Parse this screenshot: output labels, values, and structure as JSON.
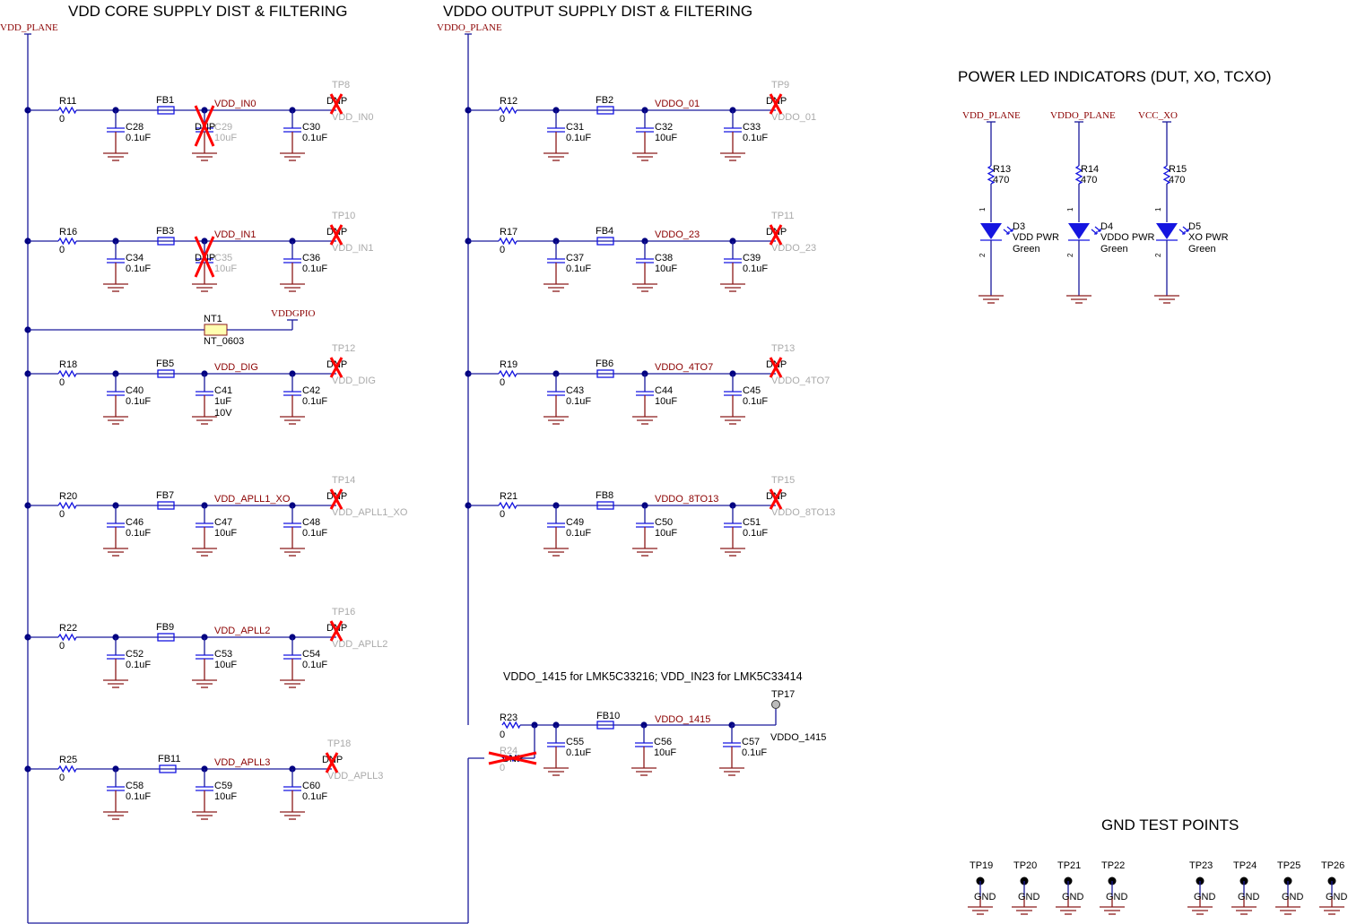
{
  "titles": {
    "vdd_core": "VDD CORE SUPPLY DIST & FILTERING",
    "vddo": "VDDO OUTPUT SUPPLY DIST & FILTERING",
    "led": "POWER LED INDICATORS (DUT, XO, TCXO)",
    "gnd_tp": "GND TEST POINTS",
    "vddo1415_note": "VDDO_1415 for LMK5C33216; VDD_IN23 for LMK5C33414"
  },
  "power_ports": {
    "vdd_plane": "VDD_PLANE",
    "vddo_plane": "VDDO_PLANE",
    "vddgpio": "VDDGPIO"
  },
  "dnp_label": "DNP",
  "nt1": {
    "ref": "NT1",
    "value": "NT_0603"
  },
  "core_rows": [
    {
      "r": {
        "ref": "R11",
        "value": "0"
      },
      "c1": {
        "ref": "C28",
        "value": "0.1uF"
      },
      "fb": "FB1",
      "c2": {
        "ref": "C29",
        "value": "10uF",
        "dnp": true
      },
      "net": "VDD_IN0",
      "c3": {
        "ref": "C30",
        "value": "0.1uF"
      },
      "tp": {
        "ref": "TP8",
        "net": "VDD_IN0",
        "dnp": true
      }
    },
    {
      "r": {
        "ref": "R16",
        "value": "0"
      },
      "c1": {
        "ref": "C34",
        "value": "0.1uF"
      },
      "fb": "FB3",
      "c2": {
        "ref": "C35",
        "value": "10uF",
        "dnp": true
      },
      "net": "VDD_IN1",
      "c3": {
        "ref": "C36",
        "value": "0.1uF"
      },
      "tp": {
        "ref": "TP10",
        "net": "VDD_IN1",
        "dnp": true
      }
    },
    {
      "r": {
        "ref": "R18",
        "value": "0"
      },
      "c1": {
        "ref": "C40",
        "value": "0.1uF"
      },
      "fb": "FB5",
      "c2": {
        "ref": "C41",
        "value": "1uF",
        "value2": "10V"
      },
      "net": "VDD_DIG",
      "c3": {
        "ref": "C42",
        "value": "0.1uF"
      },
      "tp": {
        "ref": "TP12",
        "net": "VDD_DIG",
        "dnp": true
      }
    },
    {
      "r": {
        "ref": "R20",
        "value": "0"
      },
      "c1": {
        "ref": "C46",
        "value": "0.1uF"
      },
      "fb": "FB7",
      "c2": {
        "ref": "C47",
        "value": "10uF"
      },
      "net": "VDD_APLL1_XO",
      "c3": {
        "ref": "C48",
        "value": "0.1uF"
      },
      "tp": {
        "ref": "TP14",
        "net": "VDD_APLL1_XO",
        "dnp": true
      }
    },
    {
      "r": {
        "ref": "R22",
        "value": "0"
      },
      "c1": {
        "ref": "C52",
        "value": "0.1uF"
      },
      "fb": "FB9",
      "c2": {
        "ref": "C53",
        "value": "10uF"
      },
      "net": "VDD_APLL2",
      "c3": {
        "ref": "C54",
        "value": "0.1uF"
      },
      "tp": {
        "ref": "TP16",
        "net": "VDD_APLL2",
        "dnp": true
      }
    },
    {
      "r": {
        "ref": "R25",
        "value": "0"
      },
      "c1": {
        "ref": "C58",
        "value": "0.1uF"
      },
      "fb": "FB11",
      "c2": {
        "ref": "C59",
        "value": "10uF"
      },
      "net": "VDD_APLL3",
      "c3": {
        "ref": "C60",
        "value": "0.1uF"
      },
      "tp": {
        "ref": "TP18",
        "net": "VDD_APLL3",
        "dnp": true
      }
    }
  ],
  "vddo_rows": [
    {
      "r": {
        "ref": "R12",
        "value": "0"
      },
      "c1": {
        "ref": "C31",
        "value": "0.1uF"
      },
      "fb": "FB2",
      "c2": {
        "ref": "C32",
        "value": "10uF"
      },
      "net": "VDDO_01",
      "c3": {
        "ref": "C33",
        "value": "0.1uF"
      },
      "tp": {
        "ref": "TP9",
        "net": "VDDO_01",
        "dnp": true
      }
    },
    {
      "r": {
        "ref": "R17",
        "value": "0"
      },
      "c1": {
        "ref": "C37",
        "value": "0.1uF"
      },
      "fb": "FB4",
      "c2": {
        "ref": "C38",
        "value": "10uF"
      },
      "net": "VDDO_23",
      "c3": {
        "ref": "C39",
        "value": "0.1uF"
      },
      "tp": {
        "ref": "TP11",
        "net": "VDDO_23",
        "dnp": true
      }
    },
    {
      "r": {
        "ref": "R19",
        "value": "0"
      },
      "c1": {
        "ref": "C43",
        "value": "0.1uF"
      },
      "fb": "FB6",
      "c2": {
        "ref": "C44",
        "value": "10uF"
      },
      "net": "VDDO_4TO7",
      "c3": {
        "ref": "C45",
        "value": "0.1uF"
      },
      "tp": {
        "ref": "TP13",
        "net": "VDDO_4TO7",
        "dnp": true
      }
    },
    {
      "r": {
        "ref": "R21",
        "value": "0"
      },
      "c1": {
        "ref": "C49",
        "value": "0.1uF"
      },
      "fb": "FB8",
      "c2": {
        "ref": "C50",
        "value": "10uF"
      },
      "net": "VDDO_8TO13",
      "c3": {
        "ref": "C51",
        "value": "0.1uF"
      },
      "tp": {
        "ref": "TP15",
        "net": "VDDO_8TO13",
        "dnp": true
      }
    }
  ],
  "vddo1415": {
    "r": {
      "ref": "R23",
      "value": "0"
    },
    "r_alt": {
      "ref": "R24",
      "value": "0",
      "dnp": true
    },
    "c1": {
      "ref": "C55",
      "value": "0.1uF"
    },
    "fb": "FB10",
    "c2": {
      "ref": "C56",
      "value": "10uF"
    },
    "net": "VDDO_1415",
    "c3": {
      "ref": "C57",
      "value": "0.1uF"
    },
    "tp": {
      "ref": "TP17",
      "net": "VDDO_1415"
    }
  },
  "leds": [
    {
      "port": "VDD_PLANE",
      "r": {
        "ref": "R13",
        "value": "470"
      },
      "d": {
        "ref": "D3",
        "value": "VDD PWR",
        "color": "Green"
      },
      "pin1": "1",
      "pin2": "2"
    },
    {
      "port": "VDDO_PLANE",
      "r": {
        "ref": "R14",
        "value": "470"
      },
      "d": {
        "ref": "D4",
        "value": "VDDO PWR",
        "color": "Green"
      },
      "pin1": "1",
      "pin2": "2"
    },
    {
      "port": "VCC_XO",
      "r": {
        "ref": "R15",
        "value": "470"
      },
      "d": {
        "ref": "D5",
        "value": "XO PWR",
        "color": "Green"
      },
      "pin1": "1",
      "pin2": "2"
    }
  ],
  "gnd_test_points": [
    {
      "ref": "TP19",
      "net": "GND"
    },
    {
      "ref": "TP20",
      "net": "GND"
    },
    {
      "ref": "TP21",
      "net": "GND"
    },
    {
      "ref": "TP22",
      "net": "GND"
    },
    {
      "ref": "TP23",
      "net": "GND"
    },
    {
      "ref": "TP24",
      "net": "GND"
    },
    {
      "ref": "TP25",
      "net": "GND"
    },
    {
      "ref": "TP26",
      "net": "GND"
    }
  ],
  "colors": {
    "wire": "#1a1a9c",
    "ground": "#8b1a1a",
    "net_label": "#8b0000",
    "component": "#1515e0",
    "dnp_mark": "#ff0000",
    "nt_fill": "#ffffb0"
  }
}
